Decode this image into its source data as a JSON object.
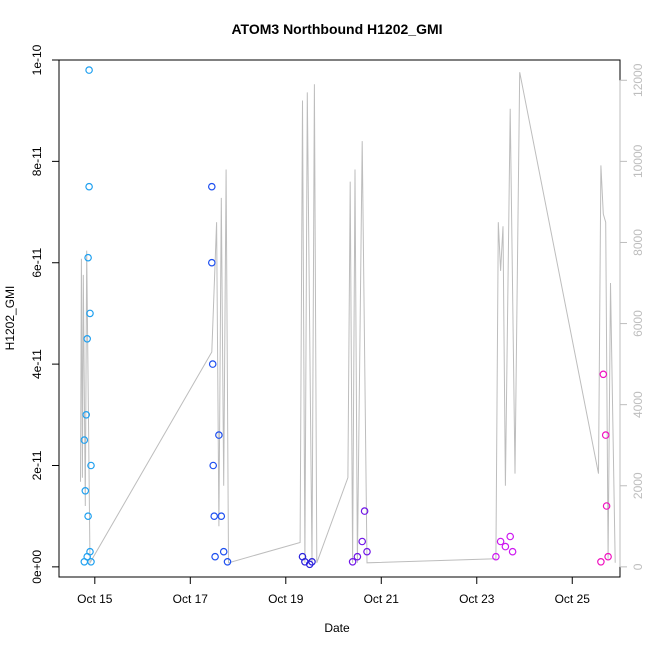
{
  "chart_data": {
    "type": "scatter",
    "title": "ATOM3 Northbound H1202_GMI",
    "xlabel": "Date",
    "ylabel": "H1202_GMI",
    "x_ticks": [
      "Oct 15",
      "Oct 17",
      "Oct 19",
      "Oct 21",
      "Oct 23",
      "Oct 25"
    ],
    "x_tick_days": [
      15,
      17,
      19,
      21,
      23,
      25
    ],
    "xlim_days": [
      14.25,
      26.0
    ],
    "y_ticks": [
      "0e+00",
      "2e-11",
      "4e-11",
      "6e-11",
      "8e-11",
      "1e-10"
    ],
    "y_tick_values": [
      0,
      2e-11,
      4e-11,
      6e-11,
      8e-11,
      1e-10
    ],
    "ylim": [
      -2e-12,
      1e-10
    ],
    "y2_ticks": [
      "0",
      "2000",
      "4000",
      "6000",
      "8000",
      "10000",
      "12000"
    ],
    "y2_tick_values": [
      0,
      2000,
      4000,
      6000,
      8000,
      10000,
      12000
    ],
    "y2lim": [
      -250,
      12500
    ],
    "grid": false,
    "series": [
      {
        "color": "#1fa0f0",
        "points": [
          [
            14.78,
            2.5e-11
          ],
          [
            14.78,
            1e-12
          ],
          [
            14.8,
            1.5e-11
          ],
          [
            14.82,
            3e-11
          ],
          [
            14.84,
            4.5e-11
          ],
          [
            14.84,
            2e-12
          ],
          [
            14.86,
            6.1e-11
          ],
          [
            14.86,
            1e-11
          ],
          [
            14.88,
            9.8e-11
          ],
          [
            14.88,
            7.5e-11
          ],
          [
            14.9,
            5e-11
          ],
          [
            14.9,
            3e-12
          ],
          [
            14.92,
            2e-11
          ],
          [
            14.92,
            1e-12
          ]
        ]
      },
      {
        "color": "#1d4ff0",
        "points": [
          [
            17.45,
            7.5e-11
          ],
          [
            17.45,
            6e-11
          ],
          [
            17.47,
            4e-11
          ],
          [
            17.48,
            2e-11
          ],
          [
            17.5,
            1e-11
          ],
          [
            17.52,
            2e-12
          ],
          [
            17.6,
            2.6e-11
          ],
          [
            17.65,
            1e-11
          ],
          [
            17.7,
            3e-12
          ],
          [
            17.78,
            1e-12
          ]
        ]
      },
      {
        "color": "#2a20dd",
        "points": [
          [
            19.35,
            2e-12
          ],
          [
            19.4,
            1e-12
          ],
          [
            19.5,
            5e-13
          ],
          [
            19.55,
            1e-12
          ]
        ]
      },
      {
        "color": "#7015e8",
        "points": [
          [
            20.4,
            1e-12
          ],
          [
            20.5,
            2e-12
          ],
          [
            20.6,
            5e-12
          ],
          [
            20.65,
            1.1e-11
          ],
          [
            20.7,
            3e-12
          ]
        ]
      },
      {
        "color": "#cd18f0",
        "points": [
          [
            23.4,
            2e-12
          ],
          [
            23.5,
            5e-12
          ],
          [
            23.6,
            4e-12
          ],
          [
            23.7,
            6e-12
          ],
          [
            23.75,
            3e-12
          ]
        ]
      },
      {
        "color": "#f012c0",
        "points": [
          [
            25.6,
            1e-12
          ],
          [
            25.65,
            3.8e-11
          ],
          [
            25.7,
            2.6e-11
          ],
          [
            25.72,
            1.2e-11
          ],
          [
            25.75,
            2e-12
          ]
        ]
      }
    ],
    "secondary_line": {
      "color": "#bdbdbd",
      "points": [
        [
          14.7,
          2100
        ],
        [
          14.72,
          7600
        ],
        [
          14.74,
          2200
        ],
        [
          14.76,
          7200
        ],
        [
          14.8,
          1500
        ],
        [
          14.83,
          7800
        ],
        [
          14.9,
          100
        ],
        [
          17.45,
          5300
        ],
        [
          17.55,
          8500
        ],
        [
          17.6,
          1000
        ],
        [
          17.65,
          9100
        ],
        [
          17.7,
          2000
        ],
        [
          17.75,
          9800
        ],
        [
          17.8,
          100
        ],
        [
          19.3,
          600
        ],
        [
          19.35,
          11500
        ],
        [
          19.4,
          100
        ],
        [
          19.45,
          11700
        ],
        [
          19.55,
          100
        ],
        [
          19.6,
          11900
        ],
        [
          19.65,
          100
        ],
        [
          20.3,
          2200
        ],
        [
          20.35,
          9500
        ],
        [
          20.4,
          100
        ],
        [
          20.45,
          9800
        ],
        [
          20.5,
          100
        ],
        [
          20.6,
          10500
        ],
        [
          20.7,
          100
        ],
        [
          23.4,
          200
        ],
        [
          23.45,
          8500
        ],
        [
          23.5,
          7300
        ],
        [
          23.55,
          8400
        ],
        [
          23.6,
          2000
        ],
        [
          23.7,
          11300
        ],
        [
          23.8,
          2300
        ],
        [
          23.9,
          12200
        ],
        [
          25.55,
          2300
        ],
        [
          25.6,
          9900
        ],
        [
          25.65,
          8700
        ],
        [
          25.7,
          8500
        ],
        [
          25.75,
          200
        ],
        [
          25.8,
          7000
        ],
        [
          25.9,
          100
        ]
      ]
    }
  }
}
